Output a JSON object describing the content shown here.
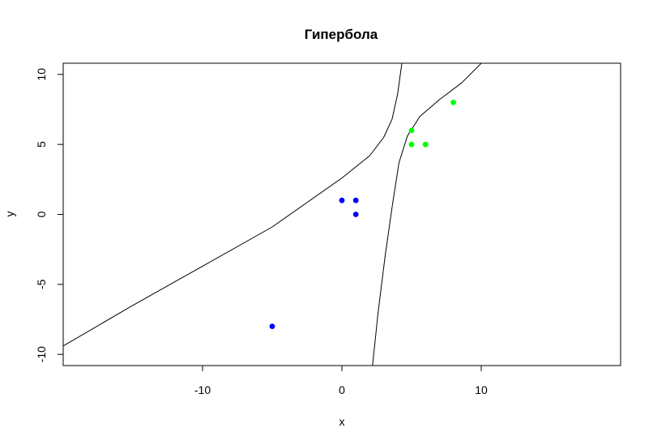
{
  "chart_data": {
    "type": "scatter",
    "title": "Гипербола",
    "xlabel": "x",
    "ylabel": "y",
    "xlim": [
      -20,
      20
    ],
    "ylim": [
      -10.8,
      10.8
    ],
    "x_ticks": [
      -10,
      0,
      10
    ],
    "x_tick_labels": [
      "-10",
      "0",
      "10"
    ],
    "y_ticks": [
      -10,
      -5,
      0,
      5,
      10
    ],
    "y_tick_labels": [
      "-10",
      "-5",
      "0",
      "5",
      "10"
    ],
    "grid": false,
    "series": [
      {
        "color": "#0000ff",
        "points": [
          [
            0,
            1
          ],
          [
            1,
            1
          ],
          [
            1,
            0
          ],
          [
            -5,
            -8
          ]
        ]
      },
      {
        "color": "#00ff00",
        "points": [
          [
            5,
            6
          ],
          [
            5,
            5
          ],
          [
            6,
            5
          ],
          [
            8,
            8
          ]
        ]
      }
    ],
    "curves": [
      {
        "color": "#000000",
        "points": [
          [
            -20,
            -9.4
          ],
          [
            -15,
            -6.5
          ],
          [
            -10,
            -3.7
          ],
          [
            -5,
            -0.9
          ],
          [
            0,
            2.6
          ],
          [
            2,
            4.2
          ],
          [
            3,
            5.5
          ],
          [
            3.6,
            6.8
          ],
          [
            4,
            8.6
          ],
          [
            4.3,
            10.8
          ]
        ]
      },
      {
        "color": "#000000",
        "points": [
          [
            2.2,
            -10.8
          ],
          [
            2.6,
            -7
          ],
          [
            3.1,
            -3
          ],
          [
            3.6,
            0.5
          ],
          [
            4.1,
            3.7
          ],
          [
            4.7,
            5.6
          ],
          [
            5.6,
            7
          ],
          [
            7,
            8.2
          ],
          [
            8.6,
            9.4
          ],
          [
            10,
            10.8
          ]
        ]
      }
    ]
  }
}
